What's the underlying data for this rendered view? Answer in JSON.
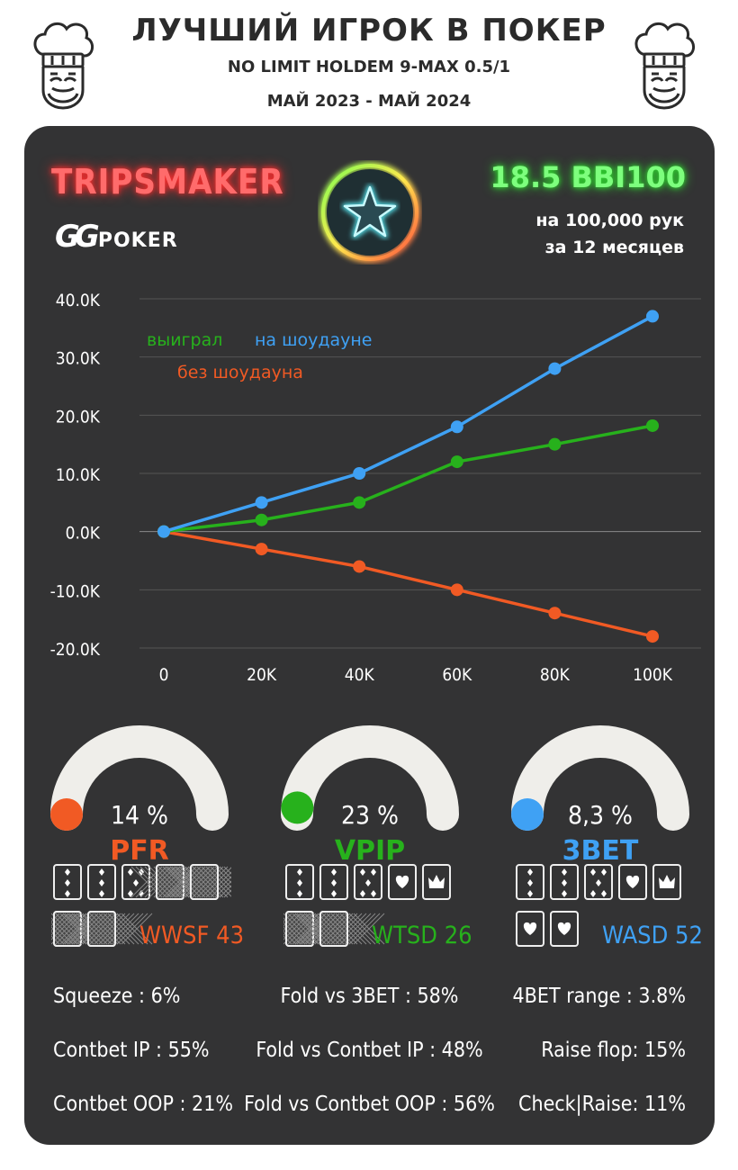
{
  "header": {
    "title": "ЛУЧШИЙ ИГРОК В ПОКЕР",
    "subtitle": "NO LIMIT HOLDEM 9-MAX 0.5/1",
    "period": "МАЙ 2023 - МАЙ 2024"
  },
  "panel": {
    "player": "TRIPSMAKER",
    "room_logo": "GG",
    "room_name": "POKER",
    "winrate": "18.5 BBI100",
    "hands_line": "на 100,000 рук",
    "months_line": "за  12 месяцев",
    "star_icon": "star-icon"
  },
  "chart_data": {
    "type": "line",
    "x": [
      0,
      20,
      40,
      60,
      80,
      100
    ],
    "x_tick_labels": [
      "0",
      "20K",
      "40K",
      "60K",
      "80K",
      "100K"
    ],
    "y_tick_values": [
      40,
      30,
      20,
      10,
      0,
      -10,
      -20
    ],
    "y_tick_labels": [
      "40.0K",
      "30.0K",
      "20.0K",
      "10.0K",
      "0.0K",
      "-10.0K",
      "-20.0K"
    ],
    "ylim": [
      -20,
      40
    ],
    "grid": true,
    "legend_position": "top-left",
    "series": [
      {
        "name": "выиграл",
        "color": "#27b11c",
        "values": [
          0,
          2,
          5,
          12,
          15,
          18.2
        ]
      },
      {
        "name": "на шоудауне",
        "color": "#3fa1f4",
        "values": [
          0,
          5,
          10,
          18,
          28,
          37
        ]
      },
      {
        "name": "без шоудауна",
        "color": "#f15a24",
        "values": [
          0,
          -3,
          -6,
          -10,
          -14,
          -18
        ]
      }
    ]
  },
  "gauges": [
    {
      "label": "PFR",
      "value": "14 %",
      "fraction": 0.0,
      "color": "#f15a24"
    },
    {
      "label": "VPIP",
      "value": "23 %",
      "fraction": 0.03,
      "color": "#27b11c"
    },
    {
      "label": "3BET",
      "value": "8,3 %",
      "fraction": 0.0,
      "color": "#3fa1f4"
    }
  ],
  "card_stats": [
    {
      "label": "WWSF 43",
      "color": "#f15a24"
    },
    {
      "label": "WTSD 26",
      "color": "#27b11c"
    },
    {
      "label": "WASD 52",
      "color": "#3fa1f4"
    }
  ],
  "stats": {
    "left": [
      "Squeeze : 6%",
      "Contbet IP : 55%",
      "Contbet OOP : 21%"
    ],
    "middle": [
      "Fold vs 3BET : 58%",
      "Fold vs Contbet IP : 48%",
      "Fold vs Contbet OOP : 56%"
    ],
    "right": [
      "4BET range : 3.8%",
      "Raise flop: 15%",
      "Check|Raise: 11%"
    ]
  }
}
